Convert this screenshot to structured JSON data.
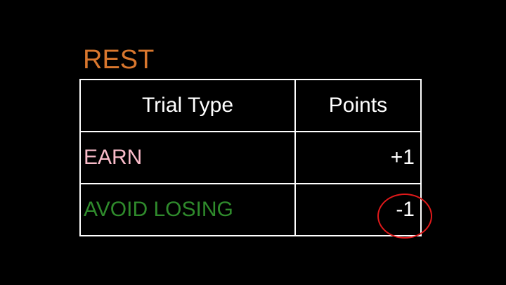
{
  "title": "REST",
  "colors": {
    "title": "#D9772E",
    "earn": "#F9BBC9",
    "avoid": "#2F8B2C",
    "highlight": "#E0191A"
  },
  "table": {
    "headers": [
      "Trial Type",
      "Points"
    ],
    "rows": [
      {
        "type": "EARN",
        "points": "+1"
      },
      {
        "type": "AVOID LOSING",
        "points": "-1"
      }
    ]
  }
}
